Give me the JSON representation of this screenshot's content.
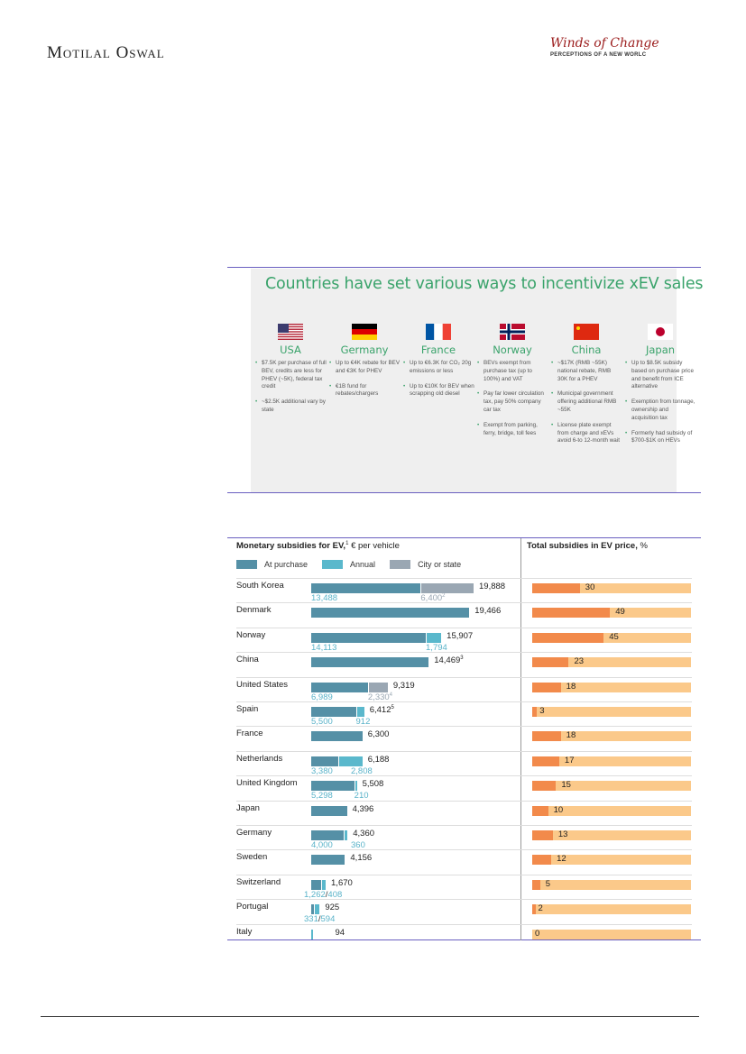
{
  "header": {
    "brand": "Motilal Oswal",
    "logo_title": "Winds of Change",
    "logo_subtitle": "PERCEPTIONS OF A NEW WORLC"
  },
  "incentives": {
    "title": "Countries have set various ways to incentivize xEV sales",
    "countries": [
      {
        "name": "USA",
        "flag": "usa-flag",
        "points": [
          "$7.5K per purchase of full BEV, credits are less for PHEV (~5K), federal tax credit",
          "~$2.5K additional vary by state"
        ]
      },
      {
        "name": "Germany",
        "flag": "germany-flag",
        "points": [
          "Up to €4K rebate for BEV and €3K for PHEV",
          "€1B fund for rebates/chargers"
        ]
      },
      {
        "name": "France",
        "flag": "france-flag",
        "points": [
          "Up to €6.3K for CO₂ 20g emissions or less",
          "Up to €10K for BEV when scrapping old diesel"
        ]
      },
      {
        "name": "Norway",
        "flag": "norway-flag",
        "points": [
          "BEVs exempt from purchase tax (up to 100%) and VAT",
          "Pay far lower circulation tax, pay 50% company car tax",
          "Exempt from parking, ferry, bridge, toll fees"
        ]
      },
      {
        "name": "China",
        "flag": "china-flag",
        "points": [
          "~$17K (RMB ~55K) national rebate, RMB 30K for a PHEV",
          "Municipal government offering additional RMB ~55K",
          "License plate exempt from charge and xEVs avoid 6-to 12-month wait"
        ]
      },
      {
        "name": "Japan",
        "flag": "japan-flag",
        "points": [
          "Up to $8.5K subsidy based on purchase price and benefit from ICE alternative",
          "Exemption from tonnage, ownership and acquisition tax",
          "Formerly had subsidy of $700-$1K on HEVs"
        ]
      }
    ]
  },
  "chart_data": [
    {
      "type": "bar",
      "title": "Monetary subsidies for EV,",
      "title_sup": "1",
      "title_suffix": "€ per vehicle",
      "legend": [
        "At purchase",
        "Annual",
        "City or state"
      ],
      "colors": {
        "purchase": "#5590a6",
        "annual": "#5ab8cc",
        "city": "#9aa7b3"
      },
      "categories": [
        "South Korea",
        "Denmark",
        "Norway",
        "China",
        "United States",
        "Spain",
        "France",
        "Netherlands",
        "United Kingdom",
        "Japan",
        "Germany",
        "Sweden",
        "Switzerland",
        "Portugal",
        "Italy"
      ],
      "series": [
        {
          "name": "At purchase",
          "values": [
            13488,
            19466,
            14113,
            14469,
            6989,
            5500,
            6300,
            3380,
            5298,
            4396,
            4000,
            4156,
            1262,
            331,
            0
          ]
        },
        {
          "name": "Annual",
          "values": [
            0,
            0,
            1794,
            0,
            0,
            912,
            0,
            2808,
            210,
            0,
            360,
            0,
            408,
            594,
            94
          ]
        },
        {
          "name": "City or state",
          "values": [
            6400,
            0,
            0,
            0,
            2330,
            0,
            0,
            0,
            0,
            0,
            0,
            0,
            0,
            0,
            0
          ]
        }
      ],
      "totals": [
        "19,888",
        "19,466",
        "15,907",
        "14,469",
        "9,319",
        "6,412",
        "6,300",
        "6,188",
        "5,508",
        "4,396",
        "4,360",
        "4,156",
        "1,670",
        "925",
        "94"
      ],
      "total_sups": [
        "",
        "",
        "",
        "3",
        "",
        "5",
        "",
        "",
        "",
        "",
        "",
        "",
        "",
        "",
        ""
      ],
      "sub_labels": [
        [
          "13,488",
          "6,400",
          "2"
        ],
        [
          "",
          "",
          ""
        ],
        [
          "14,113",
          "1,794",
          ""
        ],
        [
          "",
          "",
          ""
        ],
        [
          "6,989",
          "2,330",
          "4"
        ],
        [
          "5,500",
          "912",
          ""
        ],
        [
          "",
          "",
          ""
        ],
        [
          "3,380",
          "2,808",
          ""
        ],
        [
          "5,298",
          "210",
          ""
        ],
        [
          "",
          "",
          ""
        ],
        [
          "4,000",
          "360",
          ""
        ],
        [
          "",
          "",
          ""
        ],
        [
          "1,262",
          "408",
          ""
        ],
        [
          "331",
          "594",
          ""
        ],
        [
          "",
          "",
          ""
        ]
      ]
    },
    {
      "type": "bar",
      "title": "Total subsidies in EV price,",
      "title_suffix": "%",
      "categories": [
        "South Korea",
        "Denmark",
        "Norway",
        "China",
        "United States",
        "Spain",
        "France",
        "Netherlands",
        "United Kingdom",
        "Japan",
        "Germany",
        "Sweden",
        "Switzerland",
        "Portugal",
        "Italy"
      ],
      "values": [
        30,
        49,
        45,
        23,
        18,
        3,
        18,
        17,
        15,
        10,
        13,
        12,
        5,
        2,
        0
      ],
      "ylim": [
        0,
        100
      ],
      "colors": {
        "fill": "#f28a4b",
        "track": "#fbc98a"
      }
    }
  ]
}
